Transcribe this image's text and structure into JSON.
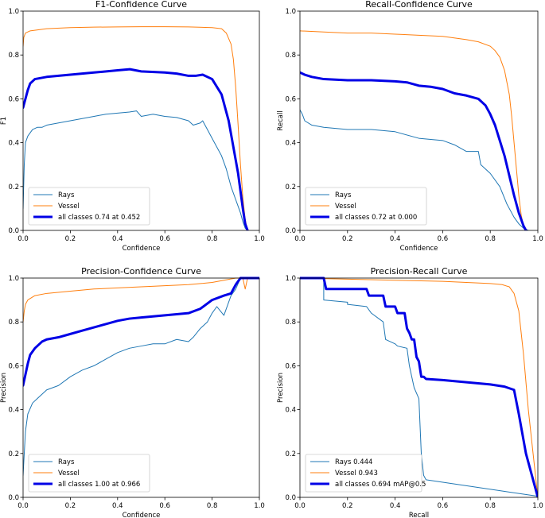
{
  "colors": {
    "rays": "#1f77b4",
    "vessel": "#ff7f0e",
    "all": "#0000e6",
    "axis": "#000000",
    "legend_border": "#cccccc"
  },
  "chart_data": [
    {
      "type": "line",
      "title": "F1-Confidence Curve",
      "xlabel": "Confidence",
      "ylabel": "F1",
      "xlim": [
        0,
        1
      ],
      "ylim": [
        0,
        1
      ],
      "xticks": [
        "0.0",
        "0.2",
        "0.4",
        "0.6",
        "0.8",
        "1.0"
      ],
      "yticks": [
        "0.0",
        "0.2",
        "0.4",
        "0.6",
        "0.8",
        "1.0"
      ],
      "legend_position": "lower-left",
      "series": [
        {
          "name": "Rays",
          "label": "Rays",
          "color": "#1f77b4",
          "width": 1,
          "x": [
            0,
            0.005,
            0.01,
            0.02,
            0.04,
            0.06,
            0.08,
            0.1,
            0.15,
            0.2,
            0.25,
            0.3,
            0.35,
            0.4,
            0.45,
            0.48,
            0.5,
            0.55,
            0.6,
            0.65,
            0.7,
            0.72,
            0.75,
            0.76,
            0.78,
            0.8,
            0.82,
            0.84,
            0.86,
            0.88,
            0.9,
            0.92,
            0.93,
            0.94,
            0.95
          ],
          "y": [
            0.1,
            0.3,
            0.4,
            0.43,
            0.46,
            0.47,
            0.47,
            0.48,
            0.49,
            0.5,
            0.51,
            0.52,
            0.53,
            0.535,
            0.54,
            0.545,
            0.52,
            0.53,
            0.52,
            0.515,
            0.5,
            0.48,
            0.49,
            0.5,
            0.46,
            0.42,
            0.38,
            0.34,
            0.28,
            0.2,
            0.14,
            0.08,
            0.04,
            0.01,
            0
          ]
        },
        {
          "name": "Vessel",
          "label": "Vessel",
          "color": "#ff7f0e",
          "width": 1,
          "x": [
            0,
            0.003,
            0.01,
            0.03,
            0.1,
            0.2,
            0.3,
            0.4,
            0.5,
            0.6,
            0.7,
            0.8,
            0.84,
            0.86,
            0.88,
            0.89,
            0.9,
            0.91,
            0.92,
            0.93,
            0.94,
            0.95
          ],
          "y": [
            0.84,
            0.88,
            0.9,
            0.91,
            0.92,
            0.925,
            0.927,
            0.928,
            0.929,
            0.929,
            0.928,
            0.925,
            0.92,
            0.9,
            0.85,
            0.78,
            0.65,
            0.48,
            0.3,
            0.15,
            0.05,
            0
          ]
        },
        {
          "name": "all classes",
          "label": "all classes 0.74 at 0.452",
          "color": "#0000e6",
          "width": 3,
          "x": [
            0,
            0.01,
            0.02,
            0.03,
            0.05,
            0.1,
            0.15,
            0.2,
            0.3,
            0.4,
            0.452,
            0.5,
            0.6,
            0.65,
            0.7,
            0.73,
            0.76,
            0.8,
            0.84,
            0.87,
            0.89,
            0.91,
            0.92,
            0.93,
            0.94,
            0.95
          ],
          "y": [
            0.56,
            0.6,
            0.64,
            0.67,
            0.69,
            0.7,
            0.705,
            0.71,
            0.72,
            0.73,
            0.735,
            0.725,
            0.72,
            0.715,
            0.705,
            0.705,
            0.71,
            0.69,
            0.62,
            0.5,
            0.38,
            0.26,
            0.18,
            0.1,
            0.03,
            0
          ]
        }
      ]
    },
    {
      "type": "line",
      "title": "Recall-Confidence Curve",
      "xlabel": "Confidence",
      "ylabel": "Recall",
      "xlim": [
        0,
        1
      ],
      "ylim": [
        0,
        1
      ],
      "xticks": [
        "0.0",
        "0.2",
        "0.4",
        "0.6",
        "0.8",
        "1.0"
      ],
      "yticks": [
        "0.0",
        "0.2",
        "0.4",
        "0.6",
        "0.8",
        "1.0"
      ],
      "legend_position": "lower-left",
      "series": [
        {
          "name": "Rays",
          "label": "Rays",
          "color": "#1f77b4",
          "width": 1,
          "x": [
            0,
            0.01,
            0.02,
            0.05,
            0.1,
            0.2,
            0.3,
            0.4,
            0.5,
            0.6,
            0.65,
            0.7,
            0.75,
            0.76,
            0.8,
            0.84,
            0.87,
            0.9,
            0.92,
            0.94,
            0.95,
            0.96
          ],
          "y": [
            0.55,
            0.53,
            0.5,
            0.48,
            0.47,
            0.46,
            0.46,
            0.45,
            0.42,
            0.41,
            0.39,
            0.36,
            0.36,
            0.3,
            0.26,
            0.2,
            0.12,
            0.06,
            0.03,
            0.01,
            0.005,
            0
          ]
        },
        {
          "name": "Vessel",
          "label": "Vessel",
          "color": "#ff7f0e",
          "width": 1,
          "x": [
            0,
            0.1,
            0.2,
            0.3,
            0.4,
            0.5,
            0.6,
            0.7,
            0.75,
            0.8,
            0.82,
            0.84,
            0.86,
            0.88,
            0.89,
            0.9,
            0.91,
            0.92,
            0.93,
            0.94,
            0.95
          ],
          "y": [
            0.91,
            0.905,
            0.9,
            0.9,
            0.895,
            0.89,
            0.885,
            0.87,
            0.86,
            0.84,
            0.82,
            0.79,
            0.73,
            0.62,
            0.52,
            0.4,
            0.28,
            0.16,
            0.07,
            0.02,
            0
          ]
        },
        {
          "name": "all classes",
          "label": "all classes 0.72 at 0.000",
          "color": "#0000e6",
          "width": 3,
          "x": [
            0,
            0.02,
            0.05,
            0.1,
            0.2,
            0.3,
            0.4,
            0.45,
            0.5,
            0.55,
            0.6,
            0.65,
            0.7,
            0.75,
            0.78,
            0.8,
            0.82,
            0.84,
            0.86,
            0.88,
            0.9,
            0.92,
            0.94,
            0.95
          ],
          "y": [
            0.72,
            0.71,
            0.7,
            0.69,
            0.685,
            0.685,
            0.68,
            0.675,
            0.66,
            0.655,
            0.645,
            0.625,
            0.615,
            0.6,
            0.57,
            0.53,
            0.48,
            0.41,
            0.34,
            0.25,
            0.16,
            0.08,
            0.02,
            0
          ]
        }
      ]
    },
    {
      "type": "line",
      "title": "Precision-Confidence Curve",
      "xlabel": "Confidence",
      "ylabel": "Precision",
      "xlim": [
        0,
        1
      ],
      "ylim": [
        0,
        1
      ],
      "xticks": [
        "0.0",
        "0.2",
        "0.4",
        "0.6",
        "0.8",
        "1.0"
      ],
      "yticks": [
        "0.0",
        "0.2",
        "0.4",
        "0.6",
        "0.8",
        "1.0"
      ],
      "legend_position": "lower-left",
      "series": [
        {
          "name": "Rays",
          "label": "Rays",
          "color": "#1f77b4",
          "width": 1,
          "x": [
            0,
            0.01,
            0.02,
            0.04,
            0.06,
            0.08,
            0.1,
            0.15,
            0.2,
            0.25,
            0.3,
            0.35,
            0.4,
            0.45,
            0.5,
            0.55,
            0.6,
            0.65,
            0.7,
            0.72,
            0.75,
            0.78,
            0.8,
            0.82,
            0.85,
            0.88,
            0.9,
            0.92,
            0.95
          ],
          "y": [
            0.1,
            0.3,
            0.38,
            0.43,
            0.45,
            0.47,
            0.49,
            0.51,
            0.55,
            0.58,
            0.6,
            0.63,
            0.66,
            0.68,
            0.69,
            0.7,
            0.7,
            0.72,
            0.71,
            0.73,
            0.77,
            0.8,
            0.84,
            0.87,
            0.83,
            0.92,
            0.95,
            1.0,
            1.0
          ]
        },
        {
          "name": "Vessel",
          "label": "Vessel",
          "color": "#ff7f0e",
          "width": 1,
          "x": [
            0,
            0.005,
            0.01,
            0.02,
            0.05,
            0.1,
            0.2,
            0.3,
            0.4,
            0.5,
            0.6,
            0.7,
            0.8,
            0.85,
            0.9,
            0.93,
            0.94,
            0.95
          ],
          "y": [
            0.8,
            0.85,
            0.88,
            0.9,
            0.92,
            0.93,
            0.94,
            0.95,
            0.955,
            0.96,
            0.965,
            0.97,
            0.98,
            0.99,
            1.0,
            1.0,
            0.95,
            1.0
          ]
        },
        {
          "name": "all classes",
          "label": "all classes 1.00 at 0.966",
          "color": "#0000e6",
          "width": 3,
          "x": [
            0,
            0.01,
            0.02,
            0.03,
            0.05,
            0.08,
            0.1,
            0.15,
            0.2,
            0.25,
            0.3,
            0.35,
            0.4,
            0.45,
            0.5,
            0.55,
            0.6,
            0.65,
            0.7,
            0.75,
            0.8,
            0.85,
            0.88,
            0.9,
            0.92,
            0.966,
            1.0
          ],
          "y": [
            0.51,
            0.56,
            0.61,
            0.65,
            0.68,
            0.71,
            0.72,
            0.73,
            0.745,
            0.76,
            0.775,
            0.79,
            0.805,
            0.815,
            0.82,
            0.825,
            0.83,
            0.835,
            0.84,
            0.86,
            0.9,
            0.92,
            0.93,
            0.97,
            1.0,
            1.0,
            1.0
          ]
        }
      ]
    },
    {
      "type": "line",
      "title": "Precision-Recall Curve",
      "xlabel": "Recall",
      "ylabel": "Precision",
      "xlim": [
        0,
        1
      ],
      "ylim": [
        0,
        1
      ],
      "xticks": [
        "0.0",
        "0.2",
        "0.4",
        "0.6",
        "0.8",
        "1.0"
      ],
      "yticks": [
        "0.0",
        "0.2",
        "0.4",
        "0.6",
        "0.8",
        "1.0"
      ],
      "legend_position": "lower-left",
      "series": [
        {
          "name": "Rays",
          "label": "Rays 0.444",
          "color": "#1f77b4",
          "width": 1,
          "x": [
            0,
            0.1,
            0.1,
            0.2,
            0.2,
            0.28,
            0.3,
            0.35,
            0.36,
            0.4,
            0.41,
            0.45,
            0.46,
            0.48,
            0.5,
            0.51,
            0.52,
            0.53,
            1.0
          ],
          "y": [
            1.0,
            1.0,
            0.9,
            0.89,
            0.88,
            0.87,
            0.84,
            0.8,
            0.72,
            0.7,
            0.69,
            0.68,
            0.6,
            0.5,
            0.45,
            0.2,
            0.1,
            0.08,
            0.005
          ]
        },
        {
          "name": "Vessel",
          "label": "Vessel 0.943",
          "color": "#ff7f0e",
          "width": 1,
          "x": [
            0,
            0.2,
            0.4,
            0.6,
            0.7,
            0.8,
            0.85,
            0.88,
            0.9,
            0.92,
            0.94,
            0.96,
            0.98,
            1.0
          ],
          "y": [
            1.0,
            0.995,
            0.99,
            0.985,
            0.98,
            0.975,
            0.97,
            0.96,
            0.93,
            0.85,
            0.65,
            0.4,
            0.2,
            0
          ]
        },
        {
          "name": "all classes",
          "label": "all classes 0.694 mAP@0.5",
          "color": "#0000e6",
          "width": 3,
          "x": [
            0,
            0.1,
            0.11,
            0.28,
            0.29,
            0.35,
            0.36,
            0.4,
            0.41,
            0.44,
            0.45,
            0.46,
            0.47,
            0.48,
            0.49,
            0.5,
            0.51,
            0.52,
            0.53,
            0.6,
            0.7,
            0.8,
            0.86,
            0.9,
            0.92,
            0.95,
            1.0
          ],
          "y": [
            1.0,
            1.0,
            0.95,
            0.95,
            0.92,
            0.92,
            0.87,
            0.87,
            0.84,
            0.84,
            0.77,
            0.75,
            0.72,
            0.72,
            0.64,
            0.62,
            0.55,
            0.55,
            0.54,
            0.535,
            0.525,
            0.515,
            0.505,
            0.49,
            0.38,
            0.2,
            0
          ]
        }
      ]
    }
  ]
}
